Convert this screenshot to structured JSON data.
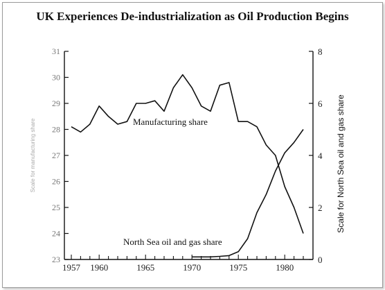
{
  "title": "UK Experiences De-industrialization as Oil Production Begins",
  "chart_data": {
    "type": "line",
    "title": "UK Experiences De-industrialization as Oil Production Begins",
    "xlabel": "",
    "x_tick_labels": [
      "1957",
      "1960",
      "1965",
      "1970",
      "1975",
      "1980"
    ],
    "x_tick_values": [
      1957,
      1960,
      1965,
      1970,
      1975,
      1980
    ],
    "xlim": [
      1956,
      1984
    ],
    "left_axis": {
      "label": "Scale for manufacturing share",
      "ylim": [
        23,
        31
      ],
      "tick_values": [
        23,
        24,
        25,
        26,
        27,
        28,
        29,
        30,
        31
      ],
      "tick_labels": [
        "23",
        "24",
        "25",
        "26",
        "27",
        "28",
        "29",
        "30",
        "31"
      ]
    },
    "right_axis": {
      "label": "Scale for North Sea oil and gas share",
      "ylim": [
        0,
        8
      ],
      "tick_values": [
        0,
        2,
        4,
        6,
        8
      ],
      "tick_labels": [
        "0",
        "2",
        "4",
        "6",
        "8"
      ]
    },
    "series": [
      {
        "name": "Manufacturing share",
        "axis": "left",
        "x": [
          1957,
          1958,
          1959,
          1960,
          1961,
          1962,
          1963,
          1964,
          1965,
          1966,
          1967,
          1968,
          1969,
          1970,
          1971,
          1972,
          1973,
          1974,
          1975,
          1976,
          1977,
          1978,
          1979,
          1980,
          1981,
          1982
        ],
        "y": [
          28.1,
          27.9,
          28.2,
          28.9,
          28.5,
          28.2,
          28.3,
          29.0,
          29.0,
          29.1,
          28.7,
          29.6,
          30.1,
          29.6,
          28.9,
          28.7,
          29.7,
          29.8,
          28.3,
          28.3,
          28.1,
          27.4,
          27.0,
          25.8,
          25.0,
          24.0
        ]
      },
      {
        "name": "North Sea oil and gas share",
        "axis": "right",
        "x": [
          1970,
          1971,
          1972,
          1973,
          1974,
          1975,
          1976,
          1977,
          1978,
          1979,
          1980,
          1981,
          1982
        ],
        "y": [
          0.1,
          0.1,
          0.1,
          0.12,
          0.15,
          0.3,
          0.8,
          1.8,
          2.5,
          3.4,
          4.1,
          4.5,
          5.0
        ]
      }
    ],
    "annotations": [
      {
        "text": "Manufacturing share",
        "series": "Manufacturing share"
      },
      {
        "text": "North Sea oil and gas share",
        "series": "North Sea oil and gas share"
      }
    ],
    "grid": false,
    "legend": "none"
  }
}
